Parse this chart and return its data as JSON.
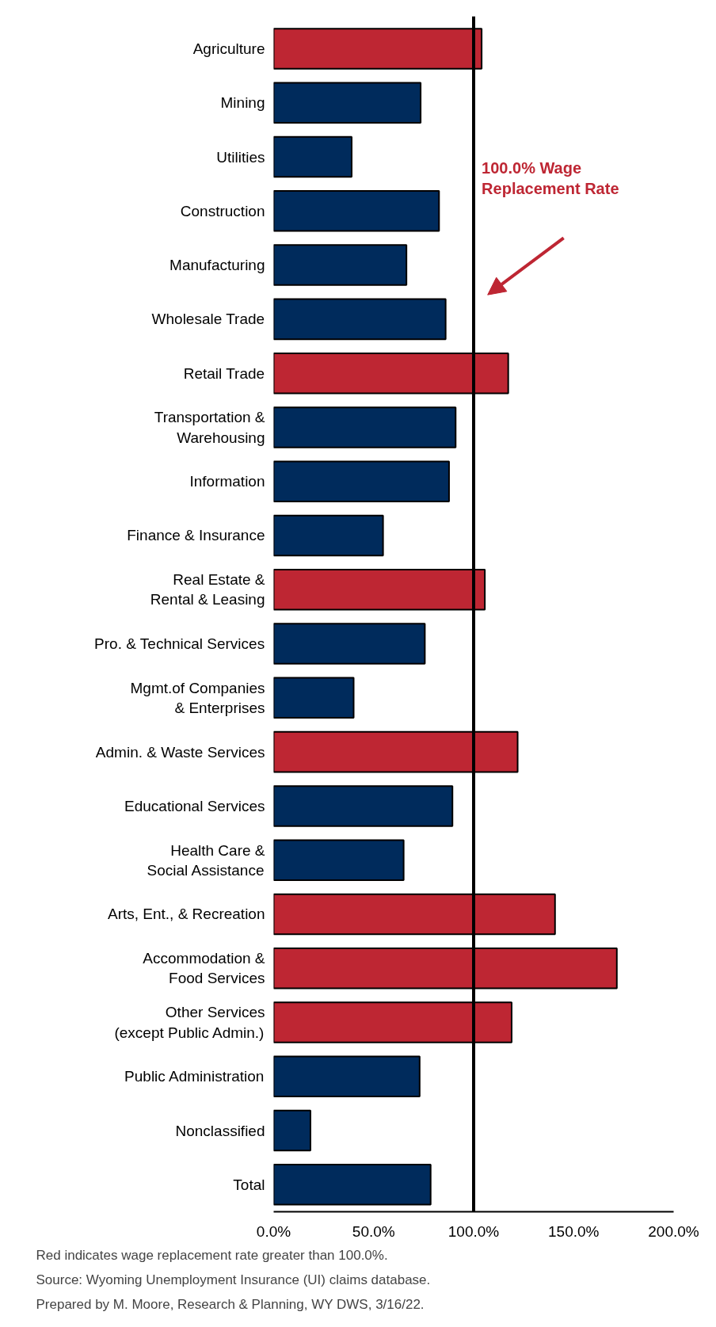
{
  "chart_data": {
    "type": "bar",
    "orientation": "horizontal",
    "categories": [
      "Agriculture",
      "Mining",
      "Utilities",
      "Construction",
      "Manufacturing",
      "Wholesale Trade",
      "Retail Trade",
      "Transportation &\nWarehousing",
      "Information",
      "Finance & Insurance",
      "Real Estate &\nRental & Leasing",
      "Pro. & Technical Services",
      "Mgmt.of Companies\n& Enterprises",
      "Admin. & Waste Services",
      "Educational Services",
      "Health Care &\nSocial Assistance",
      "Arts, Ent., & Recreation",
      "Accommodation &\nFood Services",
      "Other Services\n(except Public Admin.)",
      "Public Administration",
      "Nonclassified",
      "Total"
    ],
    "values": [
      104,
      73.5,
      39,
      82.7,
      66.4,
      86,
      117.3,
      91,
      87.7,
      54.7,
      105.6,
      75.6,
      40,
      122,
      89.4,
      65,
      140.7,
      171.6,
      119,
      73,
      18.4,
      78.5
    ],
    "colors": [
      "#be2633",
      "#002b5c",
      "#002b5c",
      "#002b5c",
      "#002b5c",
      "#002b5c",
      "#be2633",
      "#002b5c",
      "#002b5c",
      "#002b5c",
      "#be2633",
      "#002b5c",
      "#002b5c",
      "#be2633",
      "#002b5c",
      "#002b5c",
      "#be2633",
      "#be2633",
      "#be2633",
      "#002b5c",
      "#002b5c",
      "#002b5c"
    ],
    "xlim": [
      0,
      200
    ],
    "xticks": [
      {
        "value": 0,
        "label": "0.0%"
      },
      {
        "value": 50,
        "label": "50.0%"
      },
      {
        "value": 100,
        "label": "100.0%"
      },
      {
        "value": 150,
        "label": "150.0%"
      },
      {
        "value": 200,
        "label": "200.0%"
      }
    ],
    "ref_lines": [
      {
        "axis": "x",
        "value": 100,
        "label": "100.0% Wage\nReplacement Rate",
        "color": "#000000"
      }
    ],
    "grid": false,
    "annotations": [
      "Red indicates wage replacement rate greater than 100.0%.",
      "Source: Wyoming Unemployment Insurance (UI) claims database.",
      "Prepared by M. Moore, Research & Planning, WY DWS, 3/16/22."
    ]
  }
}
